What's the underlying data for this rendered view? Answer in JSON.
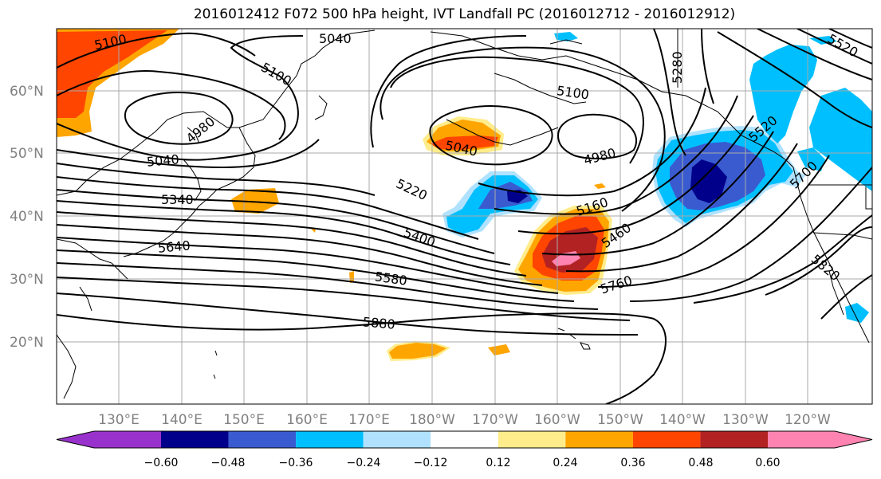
{
  "title": "2016012412 F072 500 hPa height, IVT Landfall PC (2016012712 - 2016012912)",
  "map": {
    "lat_ticks": [
      "60°N",
      "50°N",
      "40°N",
      "30°N",
      "20°N"
    ],
    "lon_ticks": [
      "130°E",
      "140°E",
      "150°E",
      "160°E",
      "170°E",
      "180°W",
      "170°W",
      "160°W",
      "150°W",
      "140°W",
      "130°W",
      "120°W"
    ],
    "contour_labels": [
      "5100",
      "5040",
      "5100",
      "4980",
      "5040",
      "5340",
      "5640",
      "5220",
      "5400",
      "5580",
      "5880",
      "5040",
      "4980",
      "5100",
      "5160",
      "5460",
      "5760",
      "5280",
      "5520",
      "5700",
      "5820",
      "5520"
    ]
  },
  "colorbar": {
    "colors": [
      "#9932cc",
      "#00008b",
      "#3a5bd0",
      "#00bfff",
      "#b0e2ff",
      "#ffffff",
      "#ffec8b",
      "#ffa500",
      "#ff4500",
      "#b22222",
      "#ff83b0"
    ],
    "tick_labels": [
      "−0.60",
      "−0.48",
      "−0.36",
      "−0.24",
      "−0.12",
      "0.12",
      "0.24",
      "0.36",
      "0.48",
      "0.60"
    ]
  }
}
